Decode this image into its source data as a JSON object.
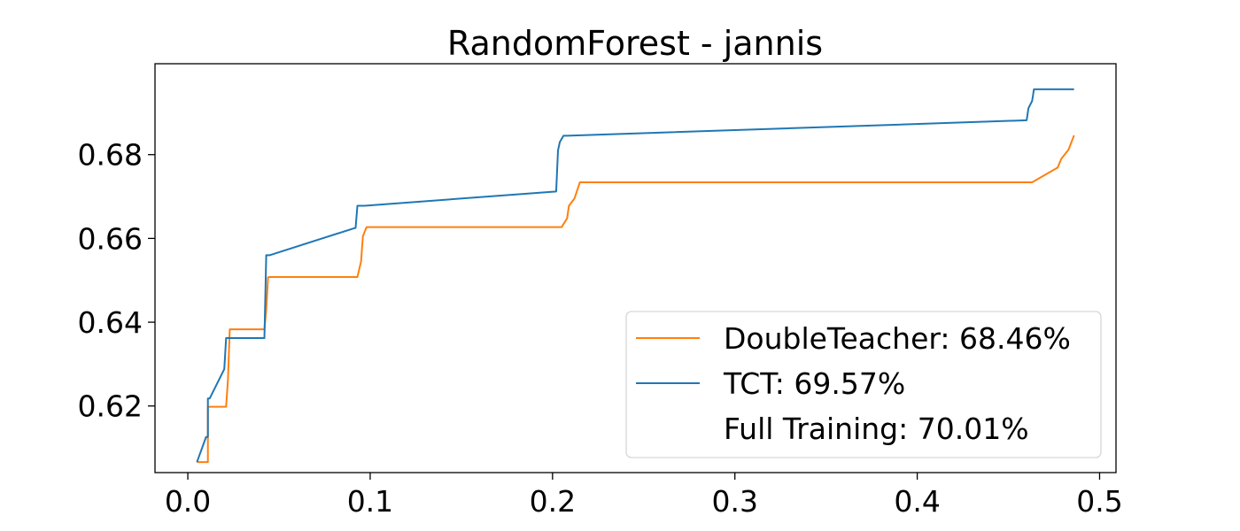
{
  "chart_data": {
    "type": "line",
    "title": "RandomForest - jannis",
    "xlabel": "",
    "ylabel": "",
    "xlim": [
      -0.018,
      0.509
    ],
    "ylim": [
      0.6041,
      0.7017
    ],
    "xticks": [
      0.0,
      0.1,
      0.2,
      0.3,
      0.4,
      0.5
    ],
    "xtick_labels": [
      "0.0",
      "0.1",
      "0.2",
      "0.3",
      "0.4",
      "0.5"
    ],
    "yticks": [
      0.62,
      0.64,
      0.66,
      0.68
    ],
    "ytick_labels": [
      "0.62",
      "0.64",
      "0.66",
      "0.68"
    ],
    "grid": false,
    "legend_position": "lower-right",
    "series": [
      {
        "name": "DoubleTeacher: 68.46%",
        "color": "#ff7f0e",
        "x": [
          0.005,
          0.01,
          0.011,
          0.011,
          0.021,
          0.022,
          0.023,
          0.042,
          0.043,
          0.044,
          0.045,
          0.093,
          0.095,
          0.096,
          0.098,
          0.205,
          0.208,
          0.209,
          0.212,
          0.213,
          0.215,
          0.463,
          0.477,
          0.479,
          0.483,
          0.486
        ],
        "y": [
          0.6066,
          0.6066,
          0.6066,
          0.6198,
          0.6198,
          0.6262,
          0.6383,
          0.6383,
          0.643,
          0.6507,
          0.6508,
          0.6508,
          0.6545,
          0.6605,
          0.6627,
          0.6627,
          0.6648,
          0.6678,
          0.6695,
          0.6708,
          0.6734,
          0.6734,
          0.6769,
          0.679,
          0.6812,
          0.6846
        ]
      },
      {
        "name": "TCT: 69.57%",
        "color": "#1f77b4",
        "x": [
          0.005,
          0.01,
          0.011,
          0.011,
          0.012,
          0.02,
          0.021,
          0.022,
          0.042,
          0.043,
          0.044,
          0.045,
          0.091,
          0.092,
          0.093,
          0.094,
          0.097,
          0.202,
          0.203,
          0.204,
          0.206,
          0.208,
          0.46,
          0.461,
          0.463,
          0.464,
          0.465,
          0.486
        ],
        "y": [
          0.6066,
          0.6126,
          0.6126,
          0.6218,
          0.6218,
          0.6288,
          0.6362,
          0.6362,
          0.6362,
          0.656,
          0.656,
          0.656,
          0.6624,
          0.6625,
          0.6678,
          0.6678,
          0.6678,
          0.6712,
          0.681,
          0.683,
          0.6845,
          0.6845,
          0.6882,
          0.6911,
          0.6928,
          0.6956,
          0.6956,
          0.6956
        ]
      },
      {
        "name": "Full Training: 70.01%",
        "color": "#2ca02c",
        "x": [],
        "y": []
      }
    ]
  }
}
